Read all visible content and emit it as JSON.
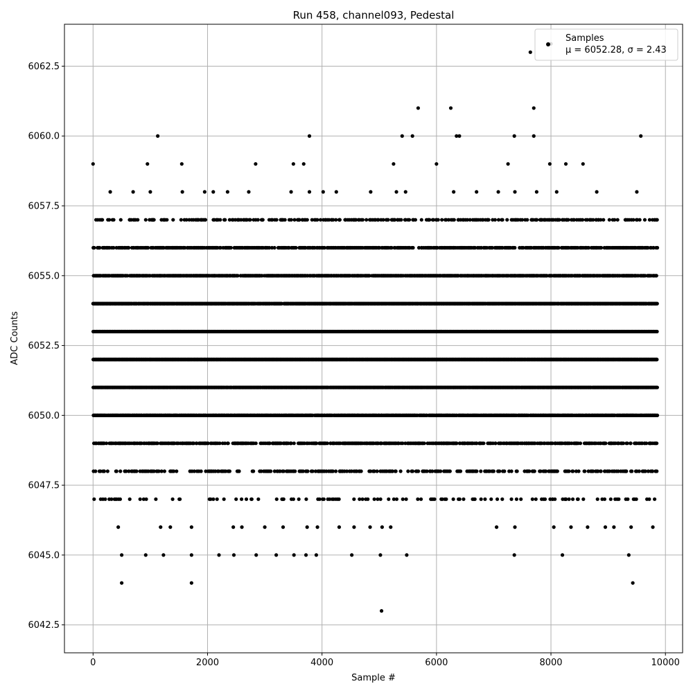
{
  "chart_data": {
    "type": "scatter",
    "title": "Run 458, channel093, Pedestal",
    "xlabel": "Sample #",
    "ylabel": "ADC Counts",
    "xlim": [
      -500,
      10300
    ],
    "ylim": [
      6041.5,
      6064.0
    ],
    "x_ticks": [
      0,
      2000,
      4000,
      6000,
      8000,
      10000
    ],
    "y_ticks": [
      6042.5,
      6045.0,
      6047.5,
      6050.0,
      6052.5,
      6055.0,
      6057.5,
      6060.0,
      6062.5
    ],
    "x_tick_labels": [
      "0",
      "2000",
      "4000",
      "6000",
      "8000",
      "10000"
    ],
    "y_tick_labels": [
      "6042.5",
      "6045.0",
      "6047.5",
      "6050.0",
      "6052.5",
      "6055.0",
      "6057.5",
      "6060.0",
      "6062.5"
    ],
    "grid": true,
    "legend_position": "top-right",
    "marker_color": "#000000",
    "series": [
      {
        "name": "Samples",
        "stats_label": "μ = 6052.28, σ = 2.43",
        "points": [
          [
            0,
            6059
          ],
          [
            950,
            6059
          ],
          [
            1130,
            6060
          ],
          [
            1550,
            6059
          ],
          [
            2840,
            6059
          ],
          [
            3500,
            6059
          ],
          [
            3680,
            6059
          ],
          [
            3780,
            6060
          ],
          [
            5250,
            6059
          ],
          [
            5400,
            6060
          ],
          [
            5580,
            6060
          ],
          [
            5680,
            6061
          ],
          [
            6000,
            6059
          ],
          [
            6250,
            6061
          ],
          [
            6350,
            6060
          ],
          [
            6400,
            6060
          ],
          [
            7250,
            6059
          ],
          [
            7360,
            6060
          ],
          [
            7640,
            6063
          ],
          [
            7700,
            6061
          ],
          [
            7700,
            6060
          ],
          [
            7980,
            6059
          ],
          [
            8260,
            6059
          ],
          [
            8560,
            6059
          ],
          [
            9570,
            6060
          ],
          [
            8000,
            6063.3
          ],
          [
            300,
            6058
          ],
          [
            700,
            6058
          ],
          [
            1000,
            6058
          ],
          [
            1560,
            6058
          ],
          [
            1950,
            6058
          ],
          [
            2100,
            6058
          ],
          [
            2350,
            6058
          ],
          [
            2720,
            6058
          ],
          [
            3460,
            6058
          ],
          [
            3780,
            6058
          ],
          [
            4020,
            6058
          ],
          [
            4250,
            6058
          ],
          [
            4850,
            6058
          ],
          [
            5300,
            6058
          ],
          [
            5460,
            6058
          ],
          [
            6300,
            6058
          ],
          [
            6700,
            6058
          ],
          [
            7080,
            6058
          ],
          [
            7370,
            6058
          ],
          [
            7750,
            6058
          ],
          [
            8100,
            6058
          ],
          [
            8800,
            6058
          ],
          [
            9500,
            6058
          ],
          [
            5040,
            6043
          ],
          [
            500,
            6044
          ],
          [
            1720,
            6044
          ],
          [
            9430,
            6044
          ],
          [
            500,
            6045
          ],
          [
            920,
            6045
          ],
          [
            1230,
            6045
          ],
          [
            1720,
            6045
          ],
          [
            2200,
            6045
          ],
          [
            2460,
            6045
          ],
          [
            2850,
            6045
          ],
          [
            3200,
            6045
          ],
          [
            3510,
            6045
          ],
          [
            3720,
            6045
          ],
          [
            3900,
            6045
          ],
          [
            4520,
            6045
          ],
          [
            5020,
            6045
          ],
          [
            5480,
            6045
          ],
          [
            7360,
            6045
          ],
          [
            8200,
            6045
          ],
          [
            9360,
            6045
          ],
          [
            440,
            6046
          ],
          [
            1180,
            6046
          ],
          [
            1350,
            6046
          ],
          [
            1720,
            6046
          ],
          [
            2450,
            6046
          ],
          [
            2600,
            6046
          ],
          [
            3000,
            6046
          ],
          [
            3320,
            6046
          ],
          [
            3740,
            6046
          ],
          [
            3920,
            6046
          ],
          [
            4300,
            6046
          ],
          [
            4560,
            6046
          ],
          [
            4840,
            6046
          ],
          [
            5050,
            6046
          ],
          [
            5200,
            6046
          ],
          [
            7050,
            6046
          ],
          [
            7370,
            6046
          ],
          [
            8050,
            6046
          ],
          [
            8350,
            6046
          ],
          [
            8640,
            6046
          ],
          [
            8950,
            6046
          ],
          [
            9100,
            6046
          ],
          [
            9400,
            6046
          ],
          [
            9780,
            6046
          ]
        ]
      }
    ]
  }
}
